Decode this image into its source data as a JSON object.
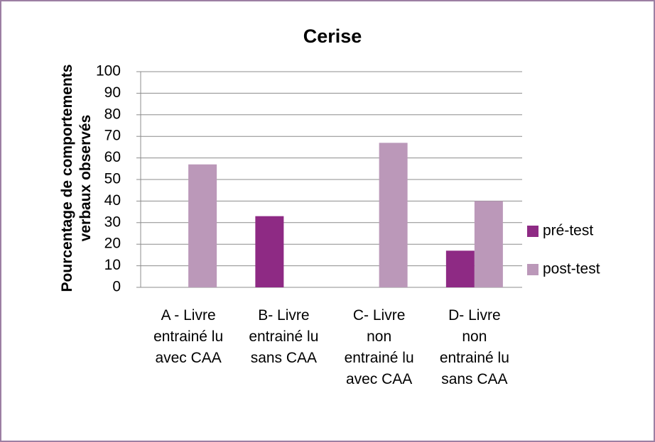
{
  "chart_data": {
    "type": "bar",
    "title": "Cerise",
    "y_label": "Pourcentage de comportements verbaux observés",
    "categories": [
      "A - Livre entrainé lu avec CAA",
      "B- Livre entrainé lu sans CAA",
      "C- Livre non entrainé lu avec CAA",
      "D- Livre non entrainé lu sans CAA"
    ],
    "series": [
      {
        "name": "pré-test",
        "color": "#8e2a84",
        "values": [
          0,
          33,
          0,
          17
        ]
      },
      {
        "name": "post-test",
        "color": "#bb98b9",
        "values": [
          57,
          0,
          67,
          40
        ]
      }
    ],
    "ylim": [
      0,
      100
    ],
    "yticks": [
      0,
      10,
      20,
      30,
      40,
      50,
      60,
      70,
      80,
      90,
      100
    ],
    "grid": true,
    "legend": "right"
  }
}
